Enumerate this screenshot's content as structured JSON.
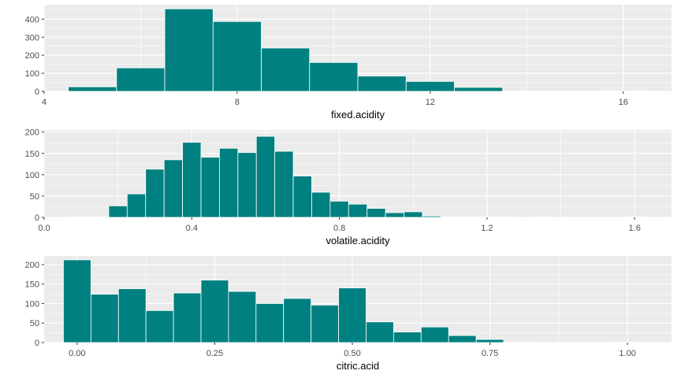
{
  "theme": {
    "panel_bg": "#ebebeb",
    "grid_major": "#ffffff",
    "bar_fill": "#008080",
    "bar_stroke": "#ffffff",
    "tick_color": "#333333"
  },
  "chart_data": [
    {
      "type": "bar",
      "xlabel": "fixed.acidity",
      "xlim": [
        4.0,
        17.0
      ],
      "ylim": [
        0,
        480
      ],
      "xticks": [
        4,
        8,
        12,
        16
      ],
      "xtick_labels": [
        "4",
        "8",
        "12",
        "16"
      ],
      "yticks": [
        0,
        100,
        200,
        300,
        400
      ],
      "ytick_labels": [
        "0",
        "100",
        "200",
        "300",
        "400"
      ],
      "grid": true,
      "bins": [
        {
          "x0": 4.5,
          "x1": 5.5,
          "count": 25
        },
        {
          "x0": 5.5,
          "x1": 6.5,
          "count": 130
        },
        {
          "x0": 6.5,
          "x1": 7.5,
          "count": 457
        },
        {
          "x0": 7.5,
          "x1": 8.5,
          "count": 387
        },
        {
          "x0": 8.5,
          "x1": 9.5,
          "count": 240
        },
        {
          "x0": 9.5,
          "x1": 10.5,
          "count": 160
        },
        {
          "x0": 10.5,
          "x1": 11.5,
          "count": 85
        },
        {
          "x0": 11.5,
          "x1": 12.5,
          "count": 55
        },
        {
          "x0": 12.5,
          "x1": 13.5,
          "count": 22
        },
        {
          "x0": 13.5,
          "x1": 14.5,
          "count": 1
        },
        {
          "x0": 14.5,
          "x1": 15.5,
          "count": 1
        },
        {
          "x0": 15.5,
          "x1": 16.5,
          "count": 2
        }
      ]
    },
    {
      "type": "bar",
      "xlabel": "volatile.acidity",
      "xlim": [
        0.0,
        1.7
      ],
      "ylim": [
        0,
        205
      ],
      "xticks": [
        0.0,
        0.4,
        0.8,
        1.2,
        1.6
      ],
      "xtick_labels": [
        "0.0",
        "0.4",
        "0.8",
        "1.2",
        "1.6"
      ],
      "yticks": [
        0,
        50,
        100,
        150,
        200
      ],
      "ytick_labels": [
        "0",
        "50",
        "100",
        "150",
        "200"
      ],
      "grid": true,
      "bins": [
        {
          "x0": 0.075,
          "x1": 0.125,
          "count": 1
        },
        {
          "x0": 0.125,
          "x1": 0.175,
          "count": 1
        },
        {
          "x0": 0.175,
          "x1": 0.225,
          "count": 27
        },
        {
          "x0": 0.225,
          "x1": 0.275,
          "count": 55
        },
        {
          "x0": 0.275,
          "x1": 0.325,
          "count": 113
        },
        {
          "x0": 0.325,
          "x1": 0.375,
          "count": 135
        },
        {
          "x0": 0.375,
          "x1": 0.425,
          "count": 176
        },
        {
          "x0": 0.425,
          "x1": 0.475,
          "count": 141
        },
        {
          "x0": 0.475,
          "x1": 0.525,
          "count": 162
        },
        {
          "x0": 0.525,
          "x1": 0.575,
          "count": 152
        },
        {
          "x0": 0.575,
          "x1": 0.625,
          "count": 190
        },
        {
          "x0": 0.625,
          "x1": 0.675,
          "count": 155
        },
        {
          "x0": 0.675,
          "x1": 0.725,
          "count": 97
        },
        {
          "x0": 0.725,
          "x1": 0.775,
          "count": 59
        },
        {
          "x0": 0.775,
          "x1": 0.825,
          "count": 38
        },
        {
          "x0": 0.825,
          "x1": 0.875,
          "count": 31
        },
        {
          "x0": 0.875,
          "x1": 0.925,
          "count": 21
        },
        {
          "x0": 0.925,
          "x1": 0.975,
          "count": 11
        },
        {
          "x0": 0.975,
          "x1": 1.025,
          "count": 13
        },
        {
          "x0": 1.025,
          "x1": 1.075,
          "count": 3
        },
        {
          "x0": 1.075,
          "x1": 1.125,
          "count": 1
        },
        {
          "x0": 1.125,
          "x1": 1.175,
          "count": 1
        },
        {
          "x0": 1.175,
          "x1": 1.225,
          "count": 1
        },
        {
          "x0": 1.225,
          "x1": 1.275,
          "count": 1
        },
        {
          "x0": 1.325,
          "x1": 1.375,
          "count": 1
        },
        {
          "x0": 1.575,
          "x1": 1.625,
          "count": 1
        }
      ]
    },
    {
      "type": "bar",
      "xlabel": "citric.acid",
      "xlim": [
        -0.06,
        1.08
      ],
      "ylim": [
        0,
        222
      ],
      "xticks": [
        0.0,
        0.25,
        0.5,
        0.75,
        1.0
      ],
      "xtick_labels": [
        "0.00",
        "0.25",
        "0.50",
        "0.75",
        "1.00"
      ],
      "yticks": [
        0,
        50,
        100,
        150,
        200
      ],
      "ytick_labels": [
        "0",
        "50",
        "100",
        "150",
        "200"
      ],
      "grid": true,
      "bins": [
        {
          "x0": -0.025,
          "x1": 0.025,
          "count": 212
        },
        {
          "x0": 0.025,
          "x1": 0.075,
          "count": 124
        },
        {
          "x0": 0.075,
          "x1": 0.125,
          "count": 138
        },
        {
          "x0": 0.125,
          "x1": 0.175,
          "count": 82
        },
        {
          "x0": 0.175,
          "x1": 0.225,
          "count": 127
        },
        {
          "x0": 0.225,
          "x1": 0.275,
          "count": 160
        },
        {
          "x0": 0.275,
          "x1": 0.325,
          "count": 131
        },
        {
          "x0": 0.325,
          "x1": 0.375,
          "count": 100
        },
        {
          "x0": 0.375,
          "x1": 0.425,
          "count": 113
        },
        {
          "x0": 0.425,
          "x1": 0.475,
          "count": 96
        },
        {
          "x0": 0.475,
          "x1": 0.525,
          "count": 140
        },
        {
          "x0": 0.525,
          "x1": 0.575,
          "count": 53
        },
        {
          "x0": 0.575,
          "x1": 0.625,
          "count": 27
        },
        {
          "x0": 0.625,
          "x1": 0.675,
          "count": 40
        },
        {
          "x0": 0.675,
          "x1": 0.725,
          "count": 18
        },
        {
          "x0": 0.725,
          "x1": 0.775,
          "count": 8
        },
        {
          "x0": 0.775,
          "x1": 0.825,
          "count": 1
        },
        {
          "x0": 0.975,
          "x1": 1.025,
          "count": 1
        }
      ]
    }
  ]
}
